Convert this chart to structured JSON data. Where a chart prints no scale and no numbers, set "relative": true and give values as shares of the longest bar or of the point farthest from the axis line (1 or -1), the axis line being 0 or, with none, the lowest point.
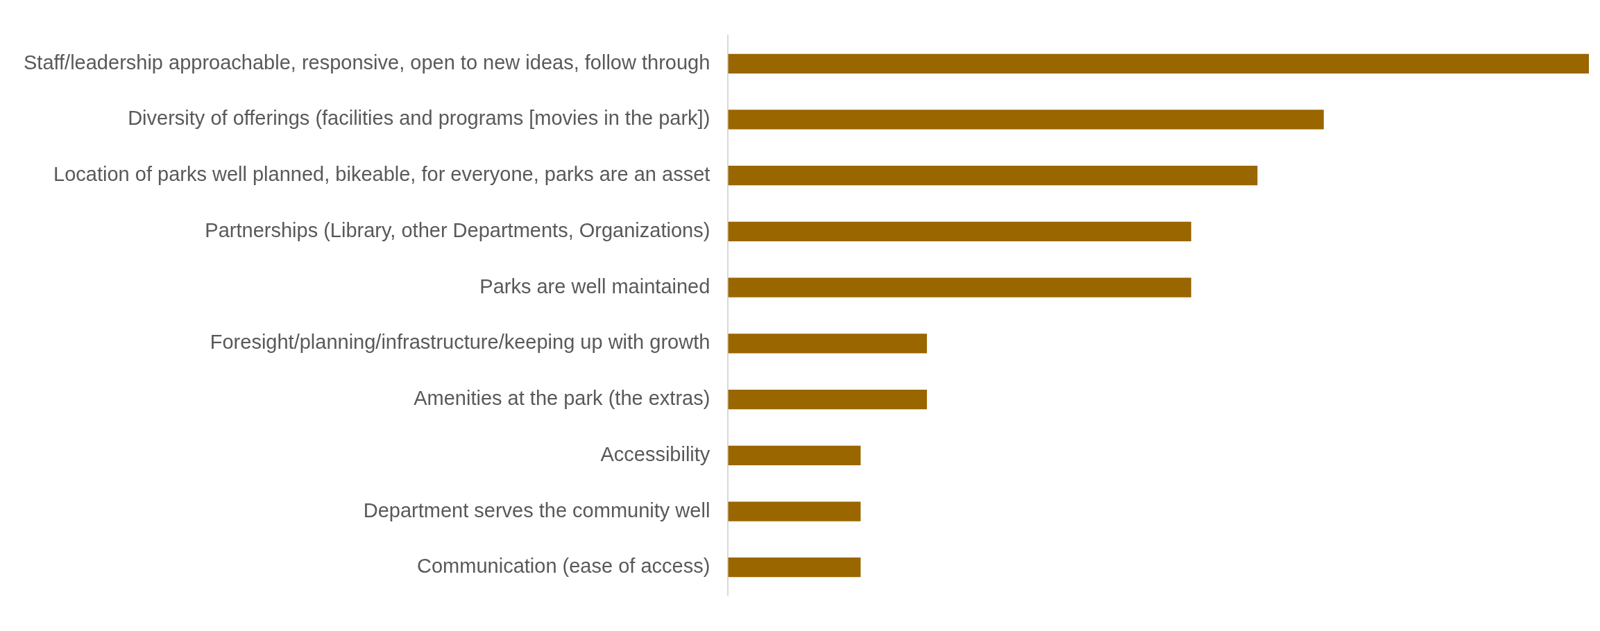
{
  "chart_data": {
    "type": "bar",
    "orientation": "horizontal",
    "relative": true,
    "grid": false,
    "legend": false,
    "categories": [
      "Staff/leadership approachable, responsive, open to new ideas, follow through",
      "Diversity of offerings (facilities and programs [movies in the park])",
      "Location of parks well planned, bikeable, for everyone, parks are an asset",
      "Partnerships (Library, other Departments, Organizations)",
      "Parks are well maintained",
      "Foresight/planning/infrastructure/keeping up with growth",
      "Amenities at the park (the extras)",
      "Accessibility",
      "Department serves the community well",
      "Communication (ease of access)"
    ],
    "values": [
      1,
      0.692,
      0.615,
      0.538,
      0.538,
      0.231,
      0.231,
      0.154,
      0.154,
      0.154
    ],
    "color": "#996600"
  }
}
